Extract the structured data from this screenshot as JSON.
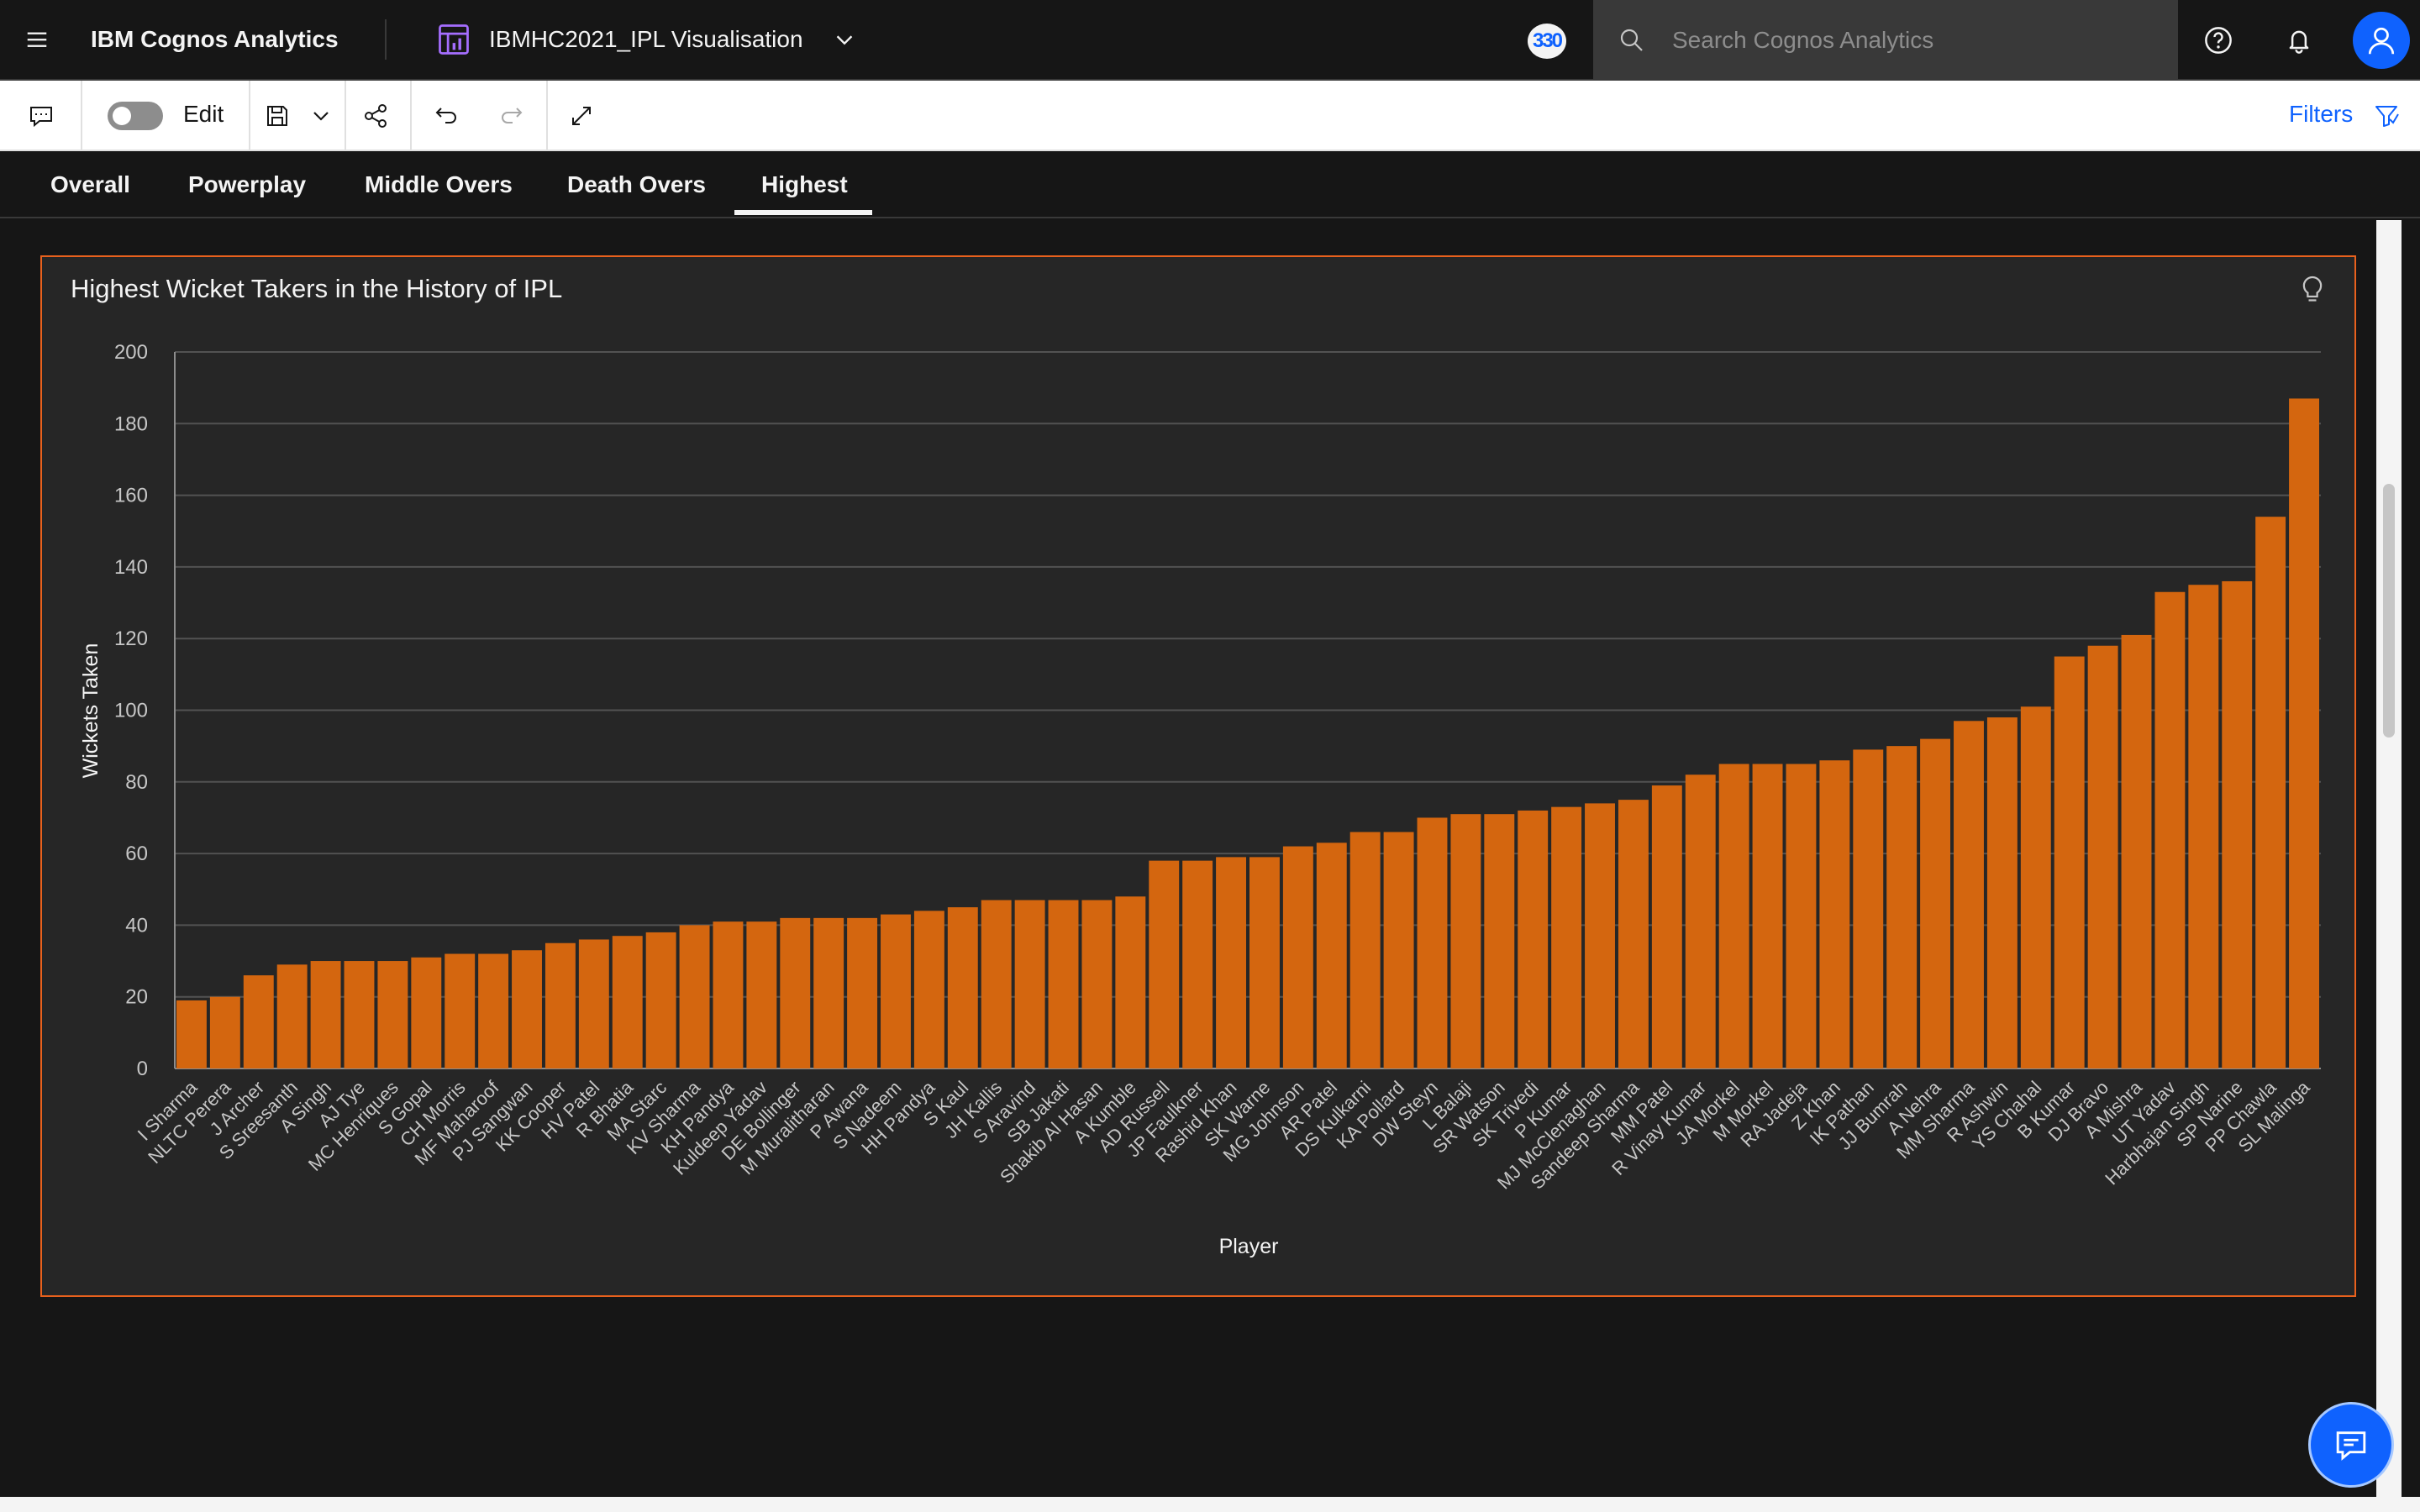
{
  "topbar": {
    "product_name": "IBM Cognos Analytics",
    "report_title": "IBMHC2021_IPL Visualisation",
    "badge_count": "330",
    "search_placeholder": "Search Cognos Analytics",
    "icons": [
      "menu-icon",
      "report-icon",
      "chevron-down-icon",
      "search-icon",
      "help-icon",
      "notification-icon",
      "user-icon"
    ]
  },
  "toolbar": {
    "edit_label": "Edit",
    "edit_mode": false,
    "filters_label": "Filters",
    "icons": [
      "comment-icon",
      "save-icon",
      "chevron-down-icon",
      "share-icon",
      "undo-icon",
      "redo-icon",
      "fullscreen-icon",
      "filter-icon"
    ]
  },
  "tabs": [
    {
      "label": "Overall"
    },
    {
      "label": "Powerplay"
    },
    {
      "label": "Middle Overs"
    },
    {
      "label": "Death Overs"
    },
    {
      "label": "Highest",
      "active": true
    }
  ],
  "widget": {
    "title": "Highest Wicket Takers in the History of IPL",
    "accent_color": "#e8611d"
  },
  "colors": {
    "bar": "#d4660f",
    "background": "#161616",
    "panel": "#262626",
    "link": "#0f62fe"
  },
  "chart_data": {
    "type": "bar",
    "xlabel": "Player",
    "ylabel": "Wickets Taken",
    "ylim": [
      0,
      200
    ],
    "yticks": [
      0,
      20,
      40,
      60,
      80,
      100,
      120,
      140,
      160,
      180,
      200
    ],
    "grid": true,
    "categories": [
      "I Sharma",
      "NLTC Perera",
      "J Archer",
      "S Sreesanth",
      "A Singh",
      "AJ Tye",
      "MC Henriques",
      "S Gopal",
      "CH Morris",
      "MF Maharoof",
      "PJ Sangwan",
      "KK Cooper",
      "HV Patel",
      "R Bhatia",
      "MA Starc",
      "KV Sharma",
      "KH Pandya",
      "Kuldeep Yadav",
      "DE Bollinger",
      "M Muralitharan",
      "P Awana",
      "S Nadeem",
      "HH Pandya",
      "S Kaul",
      "JH Kallis",
      "S Aravind",
      "SB Jakati",
      "Shakib Al Hasan",
      "A Kumble",
      "AD Russell",
      "JP Faulkner",
      "Rashid Khan",
      "SK Warne",
      "MG Johnson",
      "AR Patel",
      "DS Kulkarni",
      "KA Pollard",
      "DW Steyn",
      "L Balaji",
      "SR Watson",
      "SK Trivedi",
      "P Kumar",
      "MJ McClenaghan",
      "Sandeep Sharma",
      "MM Patel",
      "R Vinay Kumar",
      "JA Morkel",
      "M Morkel",
      "RA Jadeja",
      "Z Khan",
      "IK Pathan",
      "JJ Bumrah",
      "A Nehra",
      "MM Sharma",
      "R Ashwin",
      "YS Chahal",
      "B Kumar",
      "DJ Bravo",
      "A Mishra",
      "UT Yadav",
      "Harbhajan Singh",
      "SP Narine",
      "PP Chawla",
      "SL Malinga"
    ],
    "values": [
      19,
      20,
      26,
      29,
      30,
      30,
      30,
      31,
      32,
      32,
      33,
      35,
      36,
      37,
      38,
      40,
      41,
      41,
      42,
      42,
      42,
      43,
      44,
      45,
      47,
      47,
      47,
      47,
      48,
      58,
      58,
      59,
      59,
      62,
      63,
      66,
      66,
      70,
      71,
      71,
      72,
      73,
      74,
      75,
      79,
      82,
      85,
      85,
      85,
      86,
      89,
      90,
      92,
      97,
      98,
      101,
      115,
      118,
      121,
      133,
      135,
      136,
      154,
      187
    ]
  }
}
